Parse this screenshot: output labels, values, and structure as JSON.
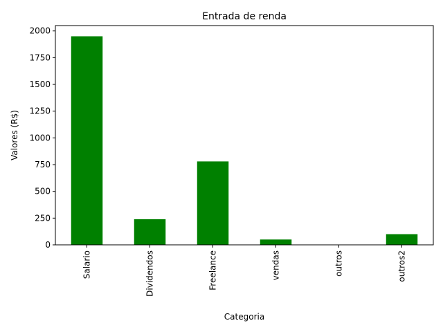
{
  "chart_data": {
    "type": "bar",
    "title": "Entrada de renda",
    "xlabel": "Categoria",
    "ylabel": "Valores (R$)",
    "categories": [
      "Salario",
      "Dividendos",
      "Freelance",
      "vendas",
      "outros",
      "outros2"
    ],
    "values": [
      1950,
      240,
      780,
      50,
      0,
      100
    ],
    "ylim": [
      0,
      2050
    ],
    "yticks": [
      0,
      250,
      500,
      750,
      1000,
      1250,
      1500,
      1750,
      2000
    ],
    "bar_color": "#008000",
    "grid": false,
    "legend": "none"
  }
}
